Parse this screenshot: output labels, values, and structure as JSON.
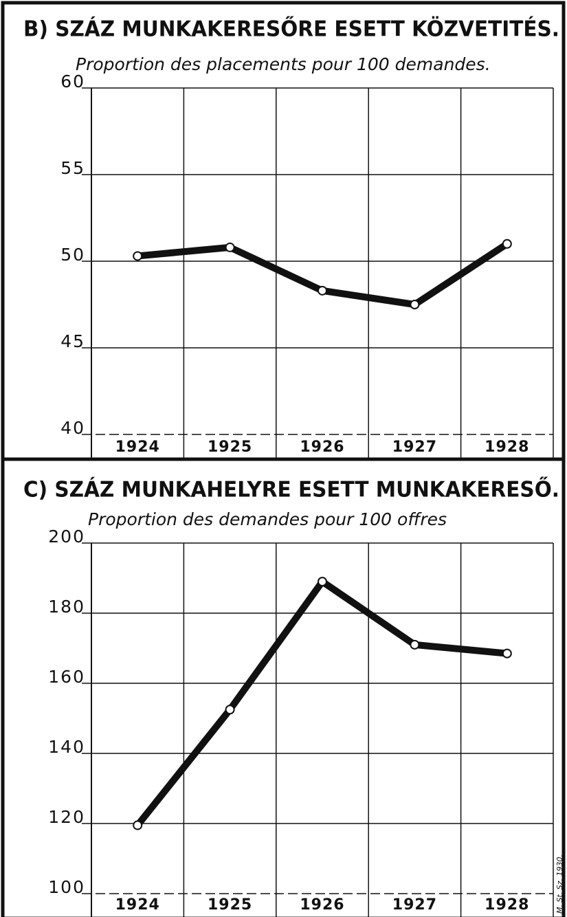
{
  "chart_data": [
    {
      "type": "line",
      "title": "B) SZÁZ MUNKAKERESŐRE ESETT KÖZVETITÉS.",
      "subtitle": "Proportion des placements pour 100 demandes.",
      "categories": [
        "1924",
        "1925",
        "1926",
        "1927",
        "1928"
      ],
      "series": [
        {
          "color": "#111111",
          "values": [
            50.3,
            50.8,
            48.3,
            47.5,
            51.0
          ]
        }
      ],
      "ylim": [
        40,
        60
      ],
      "yticks": [
        40,
        45,
        50,
        55,
        60
      ],
      "grid": true
    },
    {
      "type": "line",
      "title": "C) SZÁZ MUNKAHELYRE ESETT MUNKAKERESŐ.",
      "subtitle": "Proportion des demandes pour 100 offres",
      "categories": [
        "1924",
        "1925",
        "1926",
        "1927",
        "1928"
      ],
      "series": [
        {
          "color": "#111111",
          "values": [
            119.5,
            152.5,
            189,
            171,
            168.5
          ]
        }
      ],
      "ylim": [
        100,
        200
      ],
      "yticks": [
        100,
        120,
        140,
        160,
        180,
        200
      ],
      "grid": true,
      "annotation": "M. St. Sz. 1930."
    }
  ]
}
